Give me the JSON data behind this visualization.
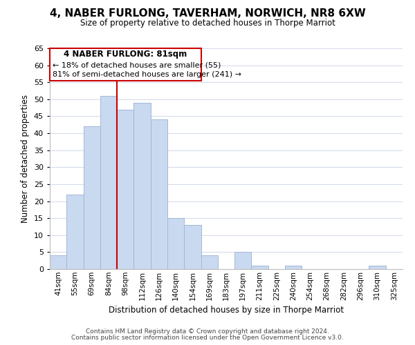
{
  "title": "4, NABER FURLONG, TAVERHAM, NORWICH, NR8 6XW",
  "subtitle": "Size of property relative to detached houses in Thorpe Marriot",
  "xlabel": "Distribution of detached houses by size in Thorpe Marriot",
  "ylabel": "Number of detached properties",
  "bin_labels": [
    "41sqm",
    "55sqm",
    "69sqm",
    "84sqm",
    "98sqm",
    "112sqm",
    "126sqm",
    "140sqm",
    "154sqm",
    "169sqm",
    "183sqm",
    "197sqm",
    "211sqm",
    "225sqm",
    "240sqm",
    "254sqm",
    "268sqm",
    "282sqm",
    "296sqm",
    "310sqm",
    "325sqm"
  ],
  "bar_heights": [
    4,
    22,
    42,
    51,
    47,
    49,
    44,
    15,
    13,
    4,
    0,
    5,
    1,
    0,
    1,
    0,
    0,
    0,
    0,
    1,
    0
  ],
  "bar_color": "#c9d9f0",
  "bar_edge_color": "#a0b8d8",
  "ylim": [
    0,
    65
  ],
  "yticks": [
    0,
    5,
    10,
    15,
    20,
    25,
    30,
    35,
    40,
    45,
    50,
    55,
    60,
    65
  ],
  "vline_x": 3.5,
  "vline_color": "#cc0000",
  "annotation_title": "4 NABER FURLONG: 81sqm",
  "annotation_line1": "← 18% of detached houses are smaller (55)",
  "annotation_line2": "81% of semi-detached houses are larger (241) →",
  "annotation_box_edge": "#cc0000",
  "footer_line1": "Contains HM Land Registry data © Crown copyright and database right 2024.",
  "footer_line2": "Contains public sector information licensed under the Open Government Licence v3.0.",
  "background_color": "#ffffff",
  "grid_color": "#d0d8e8"
}
